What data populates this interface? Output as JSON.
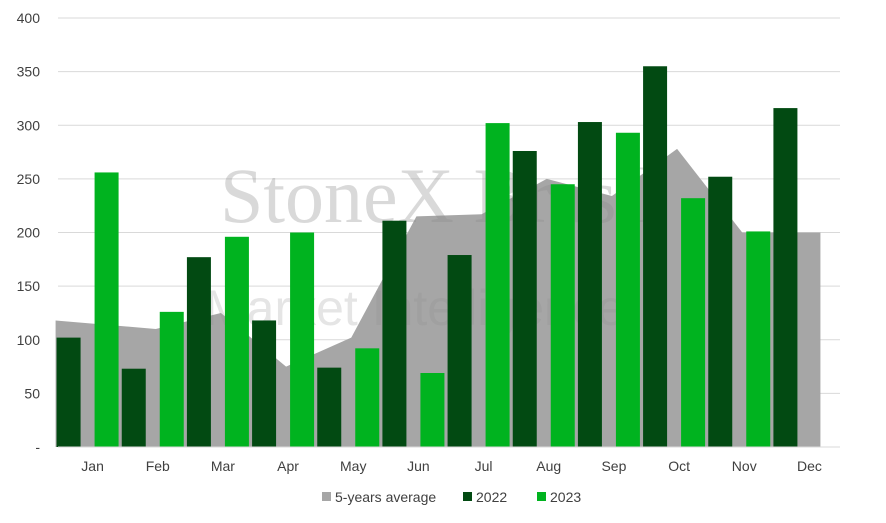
{
  "watermark": {
    "brand": "StoneX Brasil",
    "tagline": "Market Intelligence"
  },
  "chart_data": {
    "type": "bar",
    "categories": [
      "Jan",
      "Feb",
      "Mar",
      "Apr",
      "May",
      "Jun",
      "Jul",
      "Aug",
      "Sep",
      "Oct",
      "Nov",
      "Dec"
    ],
    "ylim": [
      0,
      400
    ],
    "yticks": [
      0,
      50,
      100,
      150,
      200,
      250,
      300,
      350,
      400
    ],
    "ytick_labels": [
      "-",
      "50",
      "100",
      "150",
      "200",
      "250",
      "300",
      "350",
      "400"
    ],
    "grid": true,
    "legend_position": "bottom",
    "series": [
      {
        "name": "5-years average",
        "type": "area",
        "color": "#a6a6a6",
        "values": [
          118,
          110,
          125,
          75,
          102,
          215,
          217,
          250,
          234,
          278,
          200,
          200
        ]
      },
      {
        "name": "2022",
        "type": "bar",
        "color": "#024a12",
        "values": [
          102,
          73,
          177,
          118,
          74,
          211,
          179,
          276,
          303,
          355,
          252,
          316
        ]
      },
      {
        "name": "2023",
        "type": "bar",
        "color": "#00b31f",
        "values": [
          256,
          126,
          196,
          200,
          92,
          69,
          302,
          245,
          293,
          232,
          201,
          null
        ]
      }
    ]
  }
}
